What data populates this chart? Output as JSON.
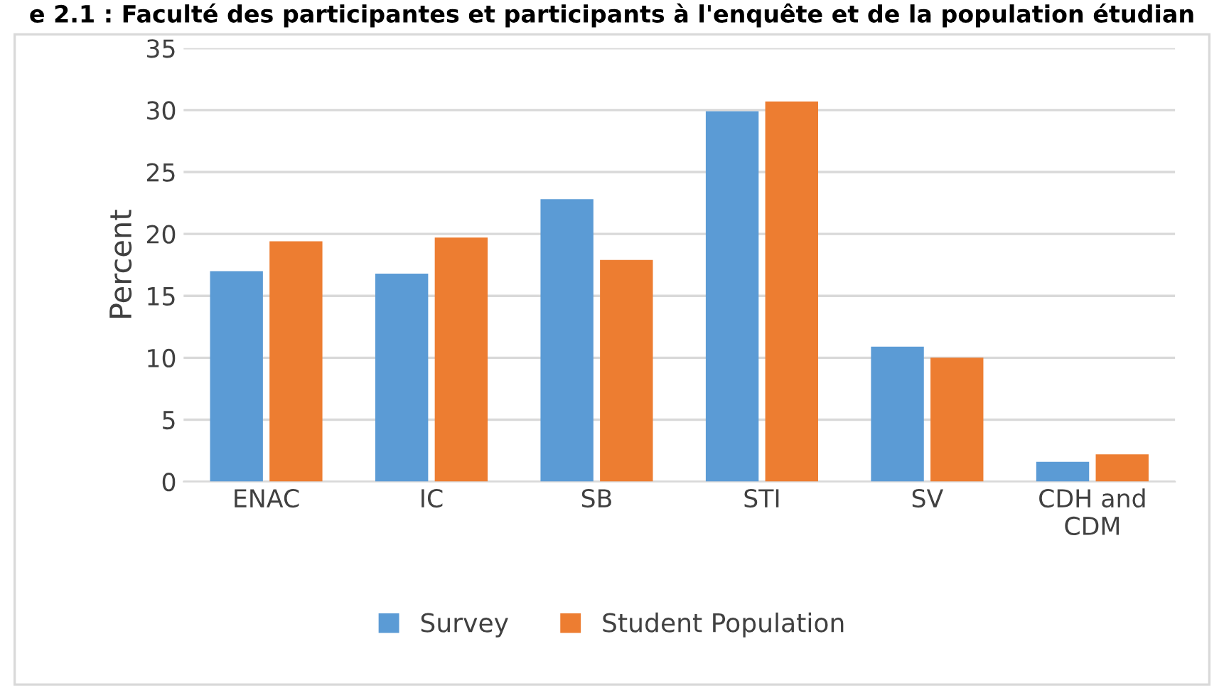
{
  "chart_data": {
    "type": "bar",
    "title": "e 2.1 : Faculté des participantes et participants à l'enquête et de la population étudian",
    "ylabel": "Percent",
    "categories": [
      "ENAC",
      "IC",
      "SB",
      "STI",
      "SV",
      "CDH and\nCDM"
    ],
    "series": [
      {
        "name": "Survey",
        "color": "#5b9bd5",
        "values": [
          17.0,
          16.8,
          22.8,
          29.9,
          10.9,
          1.6
        ]
      },
      {
        "name": "Student Population",
        "color": "#ed7d31",
        "values": [
          19.4,
          19.7,
          17.9,
          30.7,
          10.0,
          2.2
        ]
      }
    ],
    "ylim": [
      0,
      35
    ],
    "yticks": [
      0,
      5,
      10,
      15,
      20,
      25,
      30,
      35
    ],
    "grid": "y",
    "legend": "bottom"
  }
}
